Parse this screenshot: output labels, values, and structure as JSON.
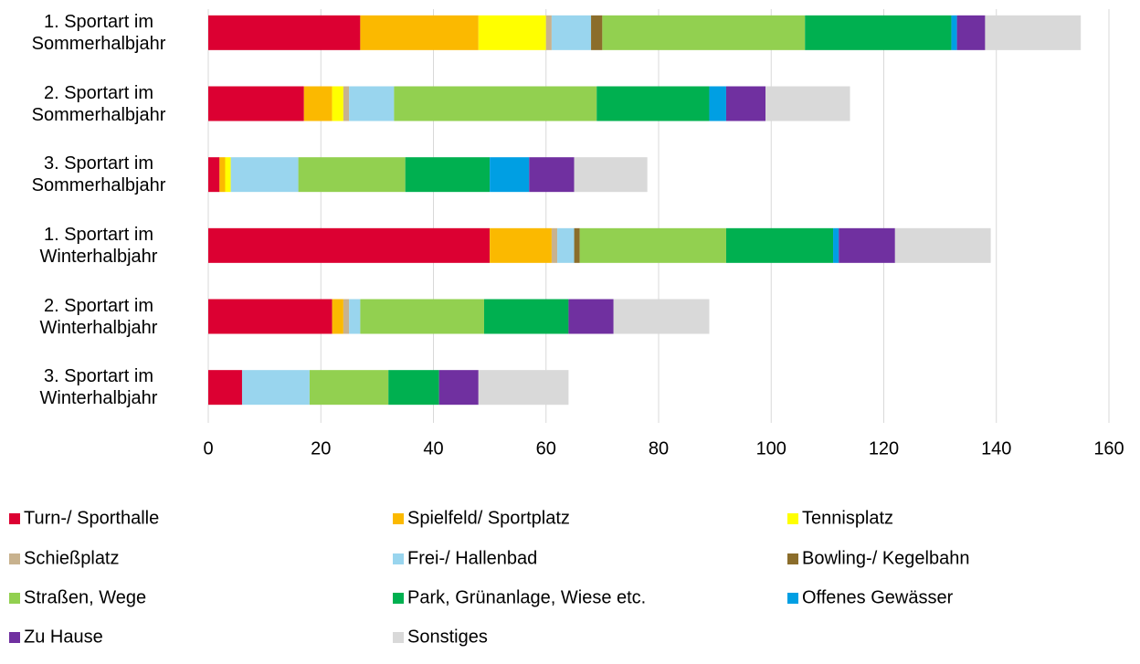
{
  "chart_data": {
    "type": "stacked_barh",
    "categories": [
      "1. Sportart im\nSommerhalbjahr",
      "2. Sportart im\nSommerhalbjahr",
      "3. Sportart im\nSommerhalbjahr",
      "1. Sportart im\nWinterhalbjahr",
      "2. Sportart im\nWinterhalbjahr",
      "3. Sportart im\nWinterhalbjahr"
    ],
    "series": [
      {
        "name": "Turn-/ Sporthalle",
        "color": "#dc0032",
        "values": [
          27,
          17,
          2,
          50,
          22,
          6
        ]
      },
      {
        "name": "Spielfeld/ Sportplatz",
        "color": "#fbb900",
        "values": [
          21,
          5,
          1,
          11,
          2,
          0
        ]
      },
      {
        "name": "Tennisplatz",
        "color": "#ffff00",
        "values": [
          12,
          2,
          1,
          0,
          0,
          0
        ]
      },
      {
        "name": "Schießplatz",
        "color": "#c8b28e",
        "values": [
          1,
          1,
          0,
          1,
          1,
          0
        ]
      },
      {
        "name": "Frei-/ Hallenbad",
        "color": "#99d5ee",
        "values": [
          7,
          8,
          12,
          3,
          2,
          12
        ]
      },
      {
        "name": "Bowling-/ Kegelbahn",
        "color": "#8b6d2b",
        "values": [
          2,
          0,
          0,
          1,
          0,
          0
        ]
      },
      {
        "name": "Straßen, Wege",
        "color": "#92d050",
        "values": [
          36,
          36,
          19,
          26,
          22,
          14
        ]
      },
      {
        "name": "Park, Grünanlage, Wiese etc.",
        "color": "#00b050",
        "values": [
          26,
          20,
          15,
          19,
          15,
          9
        ]
      },
      {
        "name": "Offenes Gewässer",
        "color": "#009fe3",
        "values": [
          1,
          3,
          7,
          1,
          0,
          0
        ]
      },
      {
        "name": "Zu Hause",
        "color": "#7030a0",
        "values": [
          5,
          7,
          8,
          10,
          8,
          7
        ]
      },
      {
        "name": "Sonstiges",
        "color": "#d9d9d9",
        "values": [
          17,
          15,
          13,
          17,
          17,
          16
        ]
      }
    ],
    "xlim": [
      0,
      160
    ],
    "xticks": [
      0,
      20,
      40,
      60,
      80,
      100,
      120,
      140,
      160
    ],
    "grid": true,
    "legend": "bottom"
  }
}
